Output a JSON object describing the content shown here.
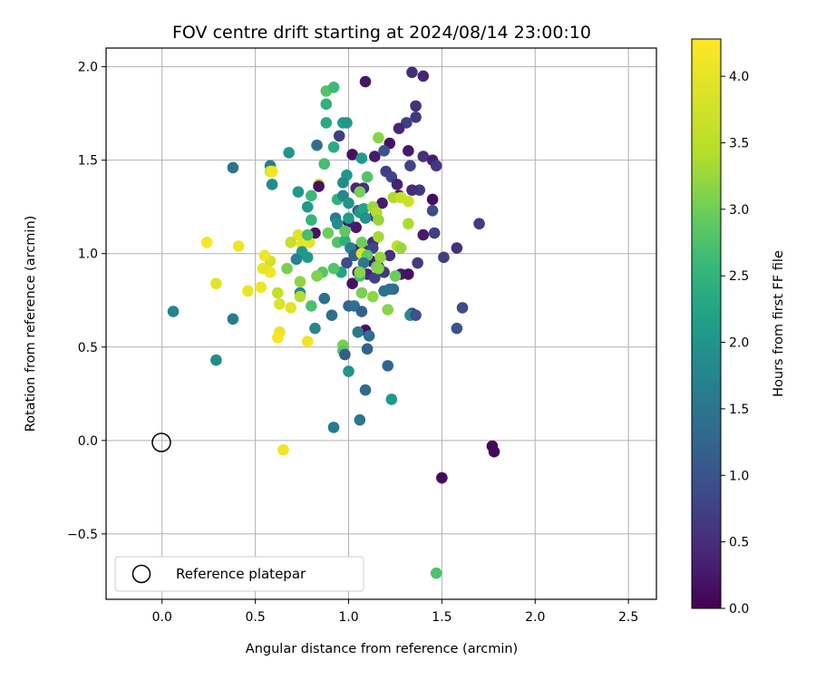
{
  "chart_data": {
    "type": "scatter",
    "title": "FOV centre drift starting at 2024/08/14 23:00:10",
    "xlabel": "Angular distance from reference (arcmin)",
    "ylabel": "Rotation from reference (arcmin)",
    "xlim": [
      -0.3,
      2.65
    ],
    "ylim": [
      -0.85,
      2.1
    ],
    "xticks": [
      0.0,
      0.5,
      1.0,
      1.5,
      2.0,
      2.5
    ],
    "xtick_labels": [
      "0.0",
      "0.5",
      "1.0",
      "1.5",
      "2.0",
      "2.5"
    ],
    "yticks": [
      -0.5,
      0.0,
      0.5,
      1.0,
      1.5,
      2.0
    ],
    "ytick_labels": [
      "−0.5",
      "0.0",
      "0.5",
      "1.0",
      "1.5",
      "2.0"
    ],
    "grid": true,
    "colormap": "viridis",
    "colorbar": {
      "label": "Hours from first FF file",
      "range": [
        0.0,
        4.28
      ],
      "ticks": [
        0.0,
        0.5,
        1.0,
        1.5,
        2.0,
        2.5,
        3.0,
        3.5,
        4.0
      ],
      "tick_labels": [
        "0.0",
        "0.5",
        "1.0",
        "1.5",
        "2.0",
        "2.5",
        "3.0",
        "3.5",
        "4.0"
      ]
    },
    "legend": {
      "placement": "lower-left",
      "entries": [
        {
          "label": "Reference platepar",
          "marker": "open-circle"
        }
      ]
    },
    "reference_point": {
      "x": 0.0,
      "y": 0.0
    },
    "points": [
      {
        "x": 1.09,
        "y": 1.92,
        "t": 0.25
      },
      {
        "x": 1.34,
        "y": 1.97,
        "t": 0.55
      },
      {
        "x": 1.4,
        "y": 1.95,
        "t": 0.45
      },
      {
        "x": 1.36,
        "y": 1.79,
        "t": 0.6
      },
      {
        "x": 1.36,
        "y": 1.73,
        "t": 0.7
      },
      {
        "x": 1.31,
        "y": 1.7,
        "t": 0.8
      },
      {
        "x": 1.27,
        "y": 1.67,
        "t": 0.45
      },
      {
        "x": 1.22,
        "y": 1.59,
        "t": 0.2
      },
      {
        "x": 1.32,
        "y": 1.55,
        "t": 0.3
      },
      {
        "x": 1.4,
        "y": 1.52,
        "t": 0.6
      },
      {
        "x": 1.45,
        "y": 1.5,
        "t": 0.35
      },
      {
        "x": 1.47,
        "y": 1.47,
        "t": 0.7
      },
      {
        "x": 1.33,
        "y": 1.47,
        "t": 0.9
      },
      {
        "x": 1.2,
        "y": 1.44,
        "t": 0.8
      },
      {
        "x": 1.23,
        "y": 1.41,
        "t": 0.9
      },
      {
        "x": 1.14,
        "y": 1.52,
        "t": 0.3
      },
      {
        "x": 1.02,
        "y": 1.53,
        "t": 0.2
      },
      {
        "x": 0.95,
        "y": 1.63,
        "t": 0.8
      },
      {
        "x": 1.19,
        "y": 1.55,
        "t": 1.1
      },
      {
        "x": 1.38,
        "y": 1.34,
        "t": 0.7
      },
      {
        "x": 1.34,
        "y": 1.34,
        "t": 0.5
      },
      {
        "x": 1.27,
        "y": 1.31,
        "t": 0.2
      },
      {
        "x": 1.26,
        "y": 1.37,
        "t": 0.4
      },
      {
        "x": 1.45,
        "y": 1.29,
        "t": 0.15
      },
      {
        "x": 1.45,
        "y": 1.23,
        "t": 1.0
      },
      {
        "x": 1.18,
        "y": 1.27,
        "t": 0.3
      },
      {
        "x": 1.14,
        "y": 1.2,
        "t": 0.9
      },
      {
        "x": 1.08,
        "y": 1.35,
        "t": 0.6
      },
      {
        "x": 1.04,
        "y": 1.35,
        "t": 0.45
      },
      {
        "x": 1.05,
        "y": 1.23,
        "t": 1.2
      },
      {
        "x": 1.04,
        "y": 1.14,
        "t": 0.3
      },
      {
        "x": 1.0,
        "y": 1.17,
        "t": 0.35
      },
      {
        "x": 1.01,
        "y": 1.03,
        "t": 0.2
      },
      {
        "x": 1.04,
        "y": 1.02,
        "t": 0.3
      },
      {
        "x": 1.08,
        "y": 1.02,
        "t": 0.6
      },
      {
        "x": 1.13,
        "y": 1.06,
        "t": 0.5
      },
      {
        "x": 1.13,
        "y": 1.03,
        "t": 0.9
      },
      {
        "x": 1.12,
        "y": 0.96,
        "t": 0.3
      },
      {
        "x": 1.1,
        "y": 0.89,
        "t": 0.45
      },
      {
        "x": 1.05,
        "y": 0.9,
        "t": 0.4
      },
      {
        "x": 1.02,
        "y": 0.84,
        "t": 0.2
      },
      {
        "x": 0.99,
        "y": 0.95,
        "t": 1.0
      },
      {
        "x": 1.19,
        "y": 0.9,
        "t": 0.7
      },
      {
        "x": 1.22,
        "y": 0.99,
        "t": 0.6
      },
      {
        "x": 1.16,
        "y": 0.93,
        "t": 0.5
      },
      {
        "x": 1.14,
        "y": 0.87,
        "t": 0.85
      },
      {
        "x": 1.24,
        "y": 0.81,
        "t": 1.5
      },
      {
        "x": 1.22,
        "y": 0.81,
        "t": 1.6
      },
      {
        "x": 1.28,
        "y": 0.89,
        "t": 0.3
      },
      {
        "x": 1.32,
        "y": 0.89,
        "t": 0.2
      },
      {
        "x": 1.34,
        "y": 0.68,
        "t": 0.85
      },
      {
        "x": 1.33,
        "y": 0.67,
        "t": 2.1
      },
      {
        "x": 1.37,
        "y": 0.95,
        "t": 0.75
      },
      {
        "x": 1.4,
        "y": 1.1,
        "t": 0.3
      },
      {
        "x": 1.46,
        "y": 1.11,
        "t": 0.8
      },
      {
        "x": 1.51,
        "y": 0.98,
        "t": 0.8
      },
      {
        "x": 1.58,
        "y": 1.03,
        "t": 0.6
      },
      {
        "x": 1.61,
        "y": 0.71,
        "t": 1.0
      },
      {
        "x": 1.58,
        "y": 0.6,
        "t": 1.1
      },
      {
        "x": 1.7,
        "y": 1.16,
        "t": 0.75
      },
      {
        "x": 1.77,
        "y": -0.03,
        "t": 0.1
      },
      {
        "x": 1.78,
        "y": -0.06,
        "t": 0.1
      },
      {
        "x": 1.5,
        "y": -0.2,
        "t": 0.1
      },
      {
        "x": 1.47,
        "y": -0.71,
        "t": 3.05
      },
      {
        "x": 0.38,
        "y": 1.46,
        "t": 1.65
      },
      {
        "x": 0.58,
        "y": 1.47,
        "t": 1.85
      },
      {
        "x": 0.59,
        "y": 1.37,
        "t": 2.05
      },
      {
        "x": 0.68,
        "y": 1.54,
        "t": 2.25
      },
      {
        "x": 0.73,
        "y": 1.33,
        "t": 2.3
      },
      {
        "x": 0.88,
        "y": 1.87,
        "t": 3.1
      },
      {
        "x": 0.92,
        "y": 1.89,
        "t": 2.9
      },
      {
        "x": 0.88,
        "y": 1.8,
        "t": 2.75
      },
      {
        "x": 0.88,
        "y": 1.7,
        "t": 2.6
      },
      {
        "x": 0.97,
        "y": 1.7,
        "t": 2.4
      },
      {
        "x": 0.99,
        "y": 1.7,
        "t": 2.3
      },
      {
        "x": 0.92,
        "y": 1.57,
        "t": 2.65
      },
      {
        "x": 0.83,
        "y": 1.58,
        "t": 1.55
      },
      {
        "x": 0.87,
        "y": 1.48,
        "t": 2.8
      },
      {
        "x": 0.87,
        "y": 1.48,
        "t": 3.0
      },
      {
        "x": 0.99,
        "y": 1.42,
        "t": 2.3
      },
      {
        "x": 0.97,
        "y": 1.38,
        "t": 2.05
      },
      {
        "x": 0.84,
        "y": 1.37,
        "t": 3.9
      },
      {
        "x": 0.84,
        "y": 1.36,
        "t": 0.2
      },
      {
        "x": 0.94,
        "y": 1.29,
        "t": 2.75
      },
      {
        "x": 0.97,
        "y": 1.31,
        "t": 2.0
      },
      {
        "x": 1.0,
        "y": 1.27,
        "t": 2.2
      },
      {
        "x": 1.06,
        "y": 1.33,
        "t": 3.4
      },
      {
        "x": 1.07,
        "y": 1.51,
        "t": 2.3
      },
      {
        "x": 1.1,
        "y": 1.41,
        "t": 3.1
      },
      {
        "x": 1.16,
        "y": 1.62,
        "t": 3.5
      },
      {
        "x": 0.8,
        "y": 1.31,
        "t": 2.9
      },
      {
        "x": 0.78,
        "y": 1.25,
        "t": 2.3
      },
      {
        "x": 0.8,
        "y": 1.18,
        "t": 2.8
      },
      {
        "x": 0.82,
        "y": 1.11,
        "t": 0.2
      },
      {
        "x": 0.79,
        "y": 1.06,
        "t": 4.1
      },
      {
        "x": 0.75,
        "y": 1.05,
        "t": 4.15
      },
      {
        "x": 0.73,
        "y": 1.1,
        "t": 4.1
      },
      {
        "x": 0.69,
        "y": 1.06,
        "t": 3.9
      },
      {
        "x": 0.78,
        "y": 1.1,
        "t": 3.0
      },
      {
        "x": 0.75,
        "y": 1.01,
        "t": 2.3
      },
      {
        "x": 0.78,
        "y": 0.98,
        "t": 2.3
      },
      {
        "x": 0.72,
        "y": 0.97,
        "t": 1.9
      },
      {
        "x": 0.89,
        "y": 1.11,
        "t": 3.3
      },
      {
        "x": 0.93,
        "y": 1.19,
        "t": 1.8
      },
      {
        "x": 0.94,
        "y": 1.16,
        "t": 2.1
      },
      {
        "x": 0.94,
        "y": 1.06,
        "t": 3.1
      },
      {
        "x": 0.98,
        "y": 1.07,
        "t": 2.7
      },
      {
        "x": 0.98,
        "y": 1.12,
        "t": 3.2
      },
      {
        "x": 1.0,
        "y": 1.19,
        "t": 2.4
      },
      {
        "x": 1.01,
        "y": 1.03,
        "t": 1.9
      },
      {
        "x": 1.03,
        "y": 0.99,
        "t": 1.3
      },
      {
        "x": 1.06,
        "y": 1.22,
        "t": 2.2
      },
      {
        "x": 1.08,
        "y": 1.24,
        "t": 2.5
      },
      {
        "x": 1.09,
        "y": 1.19,
        "t": 2.15
      },
      {
        "x": 1.07,
        "y": 1.06,
        "t": 3.3
      },
      {
        "x": 1.07,
        "y": 1.0,
        "t": 4.05
      },
      {
        "x": 1.1,
        "y": 0.99,
        "t": 3.2
      },
      {
        "x": 1.08,
        "y": 0.95,
        "t": 1.7
      },
      {
        "x": 1.13,
        "y": 1.25,
        "t": 3.65
      },
      {
        "x": 1.15,
        "y": 1.22,
        "t": 3.8
      },
      {
        "x": 1.16,
        "y": 1.18,
        "t": 3.6
      },
      {
        "x": 1.16,
        "y": 1.09,
        "t": 3.7
      },
      {
        "x": 1.17,
        "y": 0.98,
        "t": 3.6
      },
      {
        "x": 1.15,
        "y": 0.93,
        "t": 3.35
      },
      {
        "x": 1.16,
        "y": 0.92,
        "t": 3.5
      },
      {
        "x": 1.24,
        "y": 1.3,
        "t": 3.75
      },
      {
        "x": 1.28,
        "y": 1.3,
        "t": 3.9
      },
      {
        "x": 1.32,
        "y": 1.28,
        "t": 3.95
      },
      {
        "x": 1.26,
        "y": 1.04,
        "t": 3.9
      },
      {
        "x": 1.28,
        "y": 1.03,
        "t": 3.6
      },
      {
        "x": 1.32,
        "y": 1.16,
        "t": 3.75
      },
      {
        "x": 1.25,
        "y": 0.88,
        "t": 3.3
      },
      {
        "x": 1.21,
        "y": 0.7,
        "t": 3.5
      },
      {
        "x": 1.13,
        "y": 0.77,
        "t": 3.55
      },
      {
        "x": 1.07,
        "y": 0.79,
        "t": 3.4
      },
      {
        "x": 1.06,
        "y": 0.88,
        "t": 3.0
      },
      {
        "x": 1.06,
        "y": 0.9,
        "t": 3.5
      },
      {
        "x": 0.96,
        "y": 0.9,
        "t": 2.5
      },
      {
        "x": 0.92,
        "y": 0.92,
        "t": 3.1
      },
      {
        "x": 0.86,
        "y": 0.9,
        "t": 3.15
      },
      {
        "x": 0.83,
        "y": 0.88,
        "t": 3.45
      },
      {
        "x": 0.87,
        "y": 0.76,
        "t": 1.6
      },
      {
        "x": 0.8,
        "y": 0.72,
        "t": 3.05
      },
      {
        "x": 0.74,
        "y": 0.79,
        "t": 2.0
      },
      {
        "x": 0.74,
        "y": 0.77,
        "t": 3.8
      },
      {
        "x": 0.74,
        "y": 0.85,
        "t": 3.55
      },
      {
        "x": 0.67,
        "y": 0.92,
        "t": 3.4
      },
      {
        "x": 0.62,
        "y": 0.79,
        "t": 3.9
      },
      {
        "x": 0.63,
        "y": 0.73,
        "t": 4.05
      },
      {
        "x": 0.58,
        "y": 0.9,
        "t": 4.2
      },
      {
        "x": 0.58,
        "y": 0.96,
        "t": 4.0
      },
      {
        "x": 0.55,
        "y": 0.99,
        "t": 4.2
      },
      {
        "x": 0.54,
        "y": 0.92,
        "t": 4.15
      },
      {
        "x": 0.53,
        "y": 0.82,
        "t": 4.2
      },
      {
        "x": 0.46,
        "y": 0.8,
        "t": 4.15
      },
      {
        "x": 0.41,
        "y": 1.04,
        "t": 4.2
      },
      {
        "x": 0.24,
        "y": 1.06,
        "t": 4.25
      },
      {
        "x": 0.29,
        "y": 0.84,
        "t": 4.1
      },
      {
        "x": 0.06,
        "y": 0.69,
        "t": 1.9
      },
      {
        "x": 0.38,
        "y": 0.65,
        "t": 1.75
      },
      {
        "x": 0.29,
        "y": 0.43,
        "t": 2.05
      },
      {
        "x": 0.69,
        "y": 0.71,
        "t": 4.1
      },
      {
        "x": 0.63,
        "y": 0.58,
        "t": 4.15
      },
      {
        "x": 0.62,
        "y": 0.55,
        "t": 4.25
      },
      {
        "x": 0.78,
        "y": 0.53,
        "t": 4.2
      },
      {
        "x": 0.82,
        "y": 0.6,
        "t": 2.0
      },
      {
        "x": 0.65,
        "y": -0.05,
        "t": 4.2
      },
      {
        "x": 0.58,
        "y": 1.44,
        "t": 3.95
      },
      {
        "x": 0.59,
        "y": 1.44,
        "t": 4.2
      },
      {
        "x": 0.91,
        "y": 0.67,
        "t": 1.55
      },
      {
        "x": 1.0,
        "y": 0.72,
        "t": 1.4
      },
      {
        "x": 1.03,
        "y": 0.72,
        "t": 1.6
      },
      {
        "x": 1.07,
        "y": 0.69,
        "t": 1.35
      },
      {
        "x": 1.09,
        "y": 0.59,
        "t": 0.2
      },
      {
        "x": 1.05,
        "y": 0.58,
        "t": 1.75
      },
      {
        "x": 1.11,
        "y": 0.56,
        "t": 1.6
      },
      {
        "x": 1.1,
        "y": 0.49,
        "t": 1.3
      },
      {
        "x": 0.97,
        "y": 0.51,
        "t": 3.4
      },
      {
        "x": 0.97,
        "y": 0.48,
        "t": 3.15
      },
      {
        "x": 0.98,
        "y": 0.46,
        "t": 1.25
      },
      {
        "x": 1.0,
        "y": 0.37,
        "t": 2.2
      },
      {
        "x": 1.09,
        "y": 0.27,
        "t": 1.5
      },
      {
        "x": 1.06,
        "y": 0.11,
        "t": 1.7
      },
      {
        "x": 0.92,
        "y": 0.07,
        "t": 1.8
      },
      {
        "x": 1.21,
        "y": 0.4,
        "t": 1.4
      },
      {
        "x": 1.23,
        "y": 0.22,
        "t": 2.3
      },
      {
        "x": 1.19,
        "y": 0.8,
        "t": 1.6
      },
      {
        "x": 1.36,
        "y": 0.67,
        "t": 1.1
      }
    ]
  }
}
